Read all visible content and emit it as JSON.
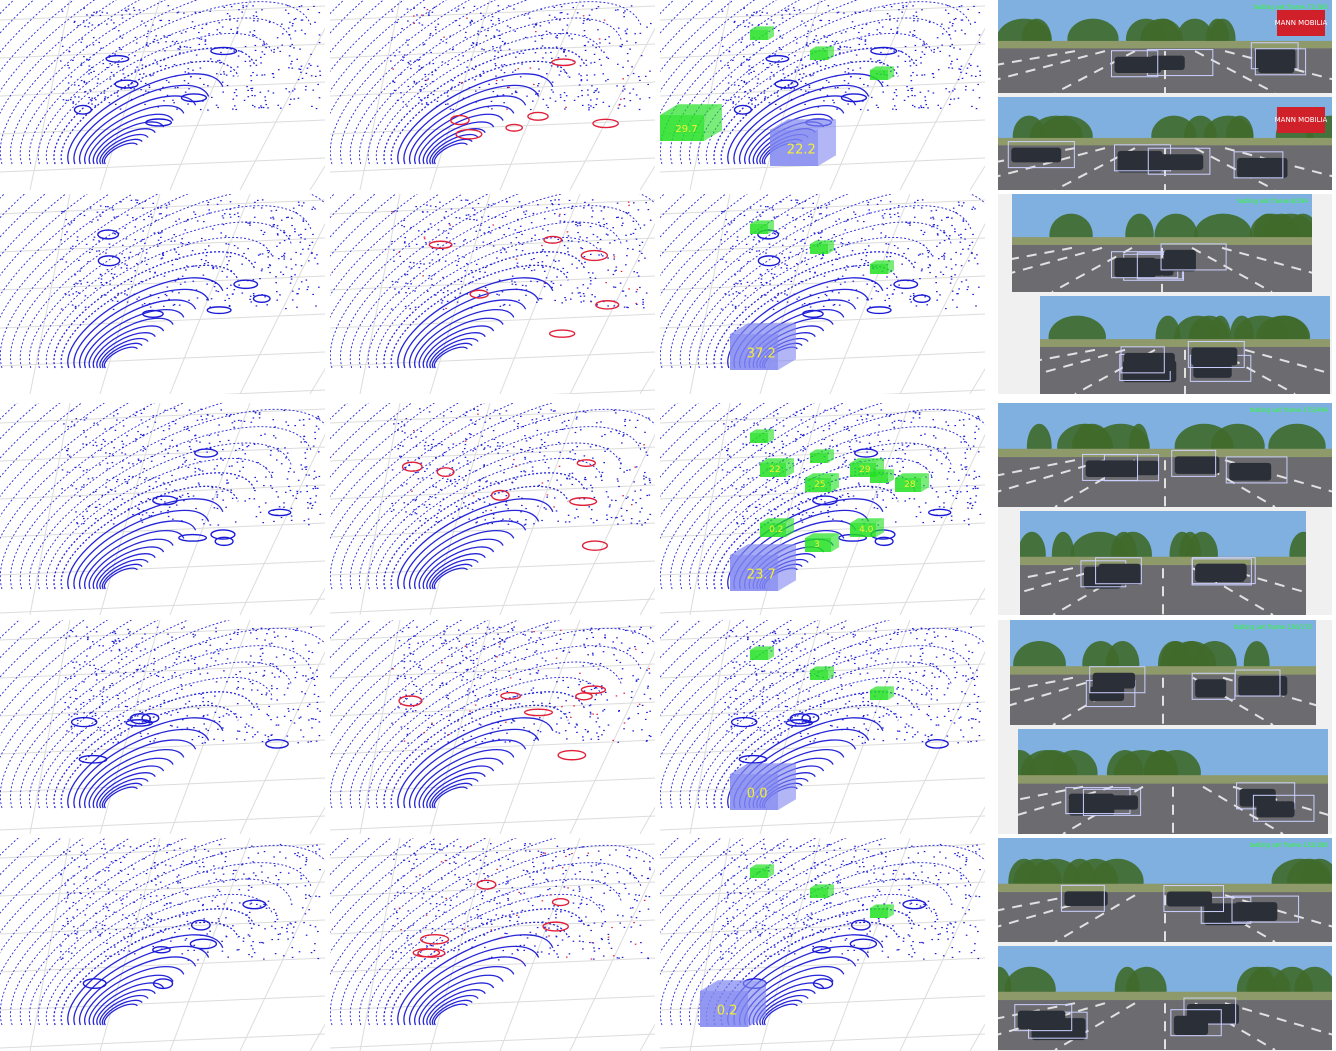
{
  "rows": [
    {
      "boxes": [
        {
          "label": "29.7",
          "kind": "green-big"
        },
        {
          "label": "22.2",
          "kind": "blue-big"
        }
      ],
      "cam_top_banner": "testing set frame 71/183",
      "sign_text": "MANN MOBILIA"
    },
    {
      "boxes": [
        {
          "label": "37.2",
          "kind": "blue-big"
        }
      ],
      "cam_top_banner": "testing set frame 8/194"
    },
    {
      "boxes": [
        {
          "label": "22",
          "kind": "green"
        },
        {
          "label": "25",
          "kind": "green"
        },
        {
          "label": "29",
          "kind": "green"
        },
        {
          "label": "28",
          "kind": "green"
        },
        {
          "label": "0.2",
          "kind": "green"
        },
        {
          "label": "3",
          "kind": "green"
        },
        {
          "label": "4.0",
          "kind": "green"
        },
        {
          "label": "23.7",
          "kind": "blue-big"
        }
      ],
      "cam_top_banner": "testing set frame 175/494"
    },
    {
      "boxes": [
        {
          "label": "0.0",
          "kind": "blue-big"
        }
      ],
      "cam_top_banner": "testing set frame 130/173"
    },
    {
      "boxes": [
        {
          "label": "0.2",
          "kind": "blue-big"
        }
      ],
      "cam_top_banner": "testing set frame 132/180"
    }
  ],
  "colors": {
    "points_blue": "#1a1ad6",
    "points_red": "#e0203a",
    "box_green": "#22e022",
    "box_blue": "#7f86f0",
    "label_yellow": "#f6f030",
    "grid_gray": "#dcdcdc",
    "sky": "#7fb0e0",
    "road": "#6c6c70",
    "tree": "#3f6a2a",
    "sign_red": "#d0202a"
  }
}
